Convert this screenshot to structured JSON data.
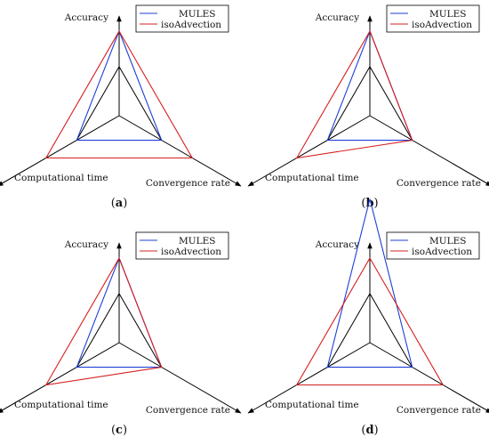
{
  "legend_labels": {
    "mules": "MULES",
    "iso": "isoAdvection"
  },
  "colors": {
    "mules": "#1f3fd6",
    "iso": "#d62020",
    "axis": "#000000",
    "reference": "#000000"
  },
  "axis_labels": [
    "Accuracy",
    "Convergence rate",
    "Computational time"
  ],
  "chart_data": [
    {
      "type": "radar",
      "panel_label": "a",
      "axes": [
        "Accuracy",
        "Convergence rate",
        "Computational time"
      ],
      "reference_level": 0.58,
      "series": [
        {
          "name": "MULES",
          "values": [
            1.0,
            0.58,
            0.58
          ]
        },
        {
          "name": "isoAdvection",
          "values": [
            1.0,
            1.0,
            1.0
          ]
        }
      ]
    },
    {
      "type": "radar",
      "panel_label": "b",
      "axes": [
        "Accuracy",
        "Convergence rate",
        "Computational time"
      ],
      "reference_level": 0.58,
      "series": [
        {
          "name": "MULES",
          "values": [
            1.0,
            0.58,
            0.58
          ]
        },
        {
          "name": "isoAdvection",
          "values": [
            1.0,
            0.58,
            1.0
          ]
        }
      ]
    },
    {
      "type": "radar",
      "panel_label": "c",
      "axes": [
        "Accuracy",
        "Convergence rate",
        "Computational time"
      ],
      "reference_level": 0.58,
      "series": [
        {
          "name": "MULES",
          "values": [
            1.0,
            0.58,
            0.58
          ]
        },
        {
          "name": "isoAdvection",
          "values": [
            1.0,
            0.58,
            1.0
          ]
        }
      ]
    },
    {
      "type": "radar",
      "panel_label": "d",
      "axes": [
        "Accuracy",
        "Convergence rate",
        "Computational time"
      ],
      "reference_level": 0.58,
      "series": [
        {
          "name": "MULES",
          "values": [
            1.7,
            0.58,
            0.58
          ]
        },
        {
          "name": "isoAdvection",
          "values": [
            1.0,
            1.0,
            1.0
          ]
        }
      ]
    }
  ]
}
